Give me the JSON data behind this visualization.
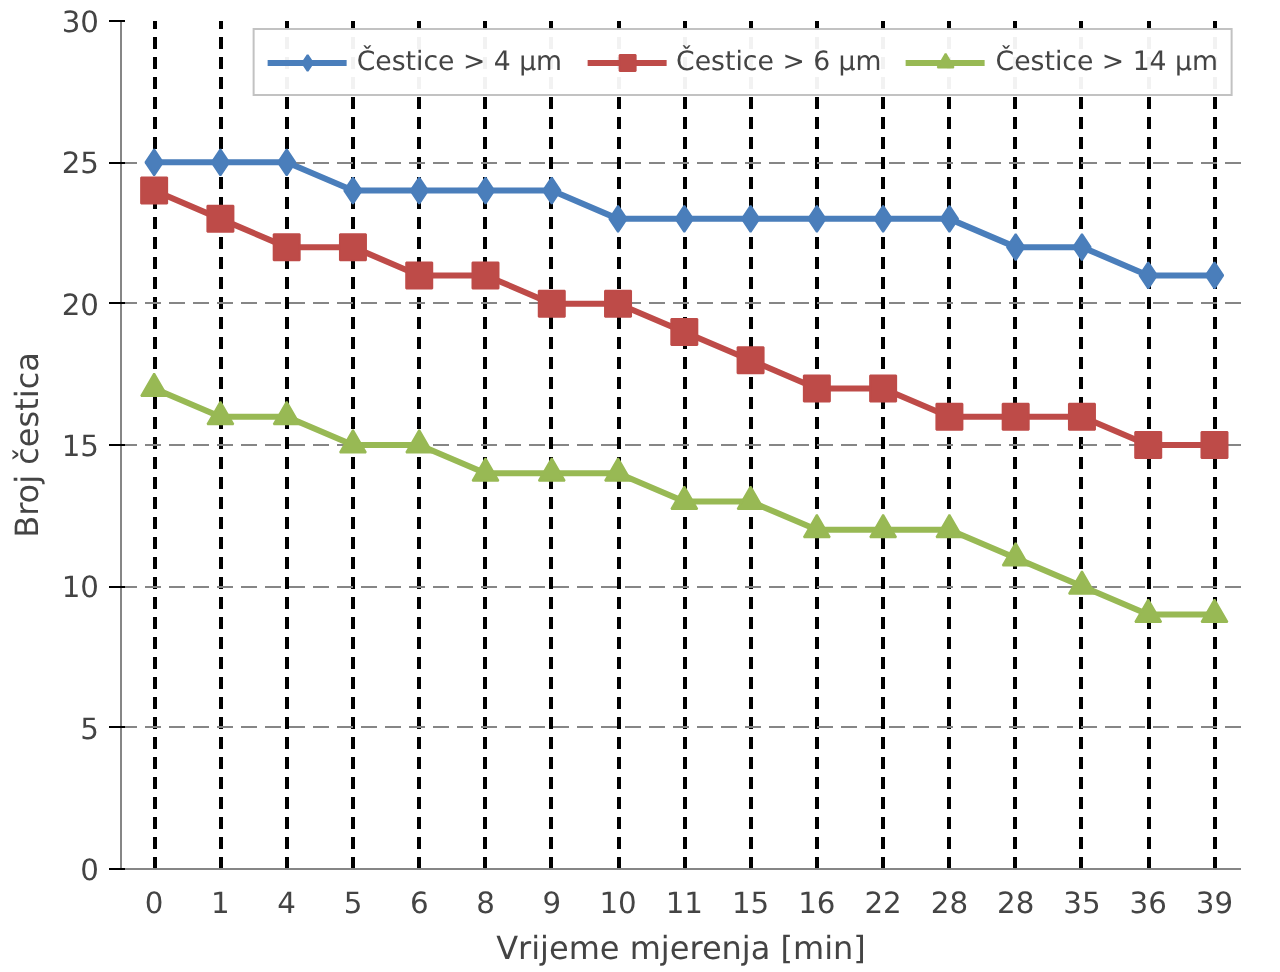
{
  "chart_data": {
    "type": "line",
    "xlabel": "Vrijeme mjerenja [min]",
    "ylabel": "Broj čestica",
    "categories": [
      "0",
      "1",
      "4",
      "5",
      "6",
      "8",
      "9",
      "10",
      "11",
      "15",
      "16",
      "22",
      "28",
      "28",
      "35",
      "36",
      "39"
    ],
    "series": [
      {
        "name": "Čestice > 4 µm",
        "color": "#4a7ebb",
        "marker": "diamond",
        "values": [
          25,
          25,
          25,
          24,
          24,
          24,
          24,
          23,
          23,
          23,
          23,
          23,
          23,
          22,
          22,
          21,
          21
        ]
      },
      {
        "name": "Čestice > 6 µm",
        "color": "#be4b48",
        "marker": "square",
        "values": [
          24,
          23,
          22,
          22,
          21,
          21,
          20,
          20,
          19,
          18,
          17,
          17,
          16,
          16,
          16,
          15,
          15
        ]
      },
      {
        "name": "Čestice > 14 µm",
        "color": "#98b954",
        "marker": "triangle",
        "values": [
          17,
          16,
          16,
          15,
          15,
          14,
          14,
          14,
          13,
          13,
          12,
          12,
          12,
          11,
          10,
          9,
          9
        ]
      }
    ],
    "ylim": [
      0,
      30
    ],
    "yticks": [
      0,
      5,
      10,
      15,
      20,
      25,
      30
    ],
    "grid": true,
    "legend": "top",
    "line_style": "solid"
  }
}
